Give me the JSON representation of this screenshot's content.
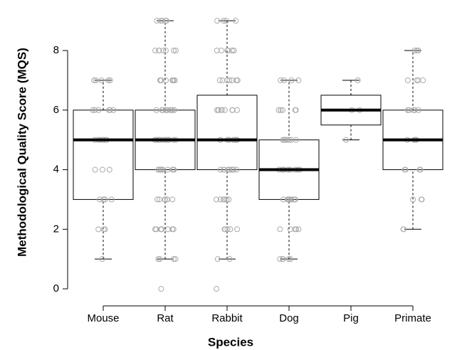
{
  "chart_data": {
    "type": "box",
    "x_label": "Species",
    "y_label": "Methodological Quality Score (MQS)",
    "categories": [
      "Mouse",
      "Rat",
      "Rabbit",
      "Dog",
      "Pig",
      "Primate"
    ],
    "boxes": [
      {
        "low": 1,
        "q1": 3,
        "median": 5,
        "q3": 6,
        "high": 7
      },
      {
        "low": 1,
        "q1": 4,
        "median": 5,
        "q3": 6,
        "high": 9
      },
      {
        "low": 1,
        "q1": 4,
        "median": 5,
        "q3": 6.5,
        "high": 9
      },
      {
        "low": 1,
        "q1": 3,
        "median": 4,
        "q3": 5,
        "high": 7
      },
      {
        "low": 5,
        "q1": 5.5,
        "median": 6,
        "q3": 6.5,
        "high": 7
      },
      {
        "low": 2,
        "q1": 4,
        "median": 5,
        "q3": 6,
        "high": 8
      }
    ],
    "points": [
      [
        7,
        7,
        7,
        7,
        7,
        6,
        6,
        6,
        6,
        6,
        6,
        5,
        5,
        5,
        5,
        5,
        5,
        5,
        4,
        4,
        4,
        3,
        3,
        3,
        3,
        2,
        2,
        2,
        1
      ],
      [
        9,
        9,
        9,
        9,
        9,
        8,
        8,
        8,
        8,
        8,
        8,
        8,
        7,
        7,
        7,
        7,
        7,
        7,
        7,
        7,
        6,
        6,
        6,
        6,
        6,
        6,
        6,
        6,
        6,
        6,
        5,
        5,
        5,
        5,
        5,
        5,
        5,
        5,
        5,
        5,
        5,
        5,
        4,
        4,
        4,
        4,
        4,
        4,
        4,
        4,
        4,
        4,
        4,
        3,
        3,
        3,
        3,
        3,
        3,
        3,
        3,
        2,
        2,
        2,
        2,
        2,
        2,
        2,
        2,
        1,
        1,
        1,
        1,
        0
      ],
      [
        9,
        9,
        9,
        9,
        8,
        8,
        8,
        8,
        8,
        8,
        8,
        7,
        7,
        7,
        7,
        7,
        7,
        7,
        6,
        6,
        6,
        6,
        6,
        6,
        6,
        6,
        6,
        5,
        5,
        5,
        5,
        5,
        5,
        5,
        5,
        5,
        5,
        4,
        4,
        4,
        4,
        4,
        4,
        4,
        4,
        4,
        3,
        3,
        3,
        3,
        3,
        3,
        2,
        2,
        2,
        2,
        2,
        1,
        1,
        0
      ],
      [
        7,
        7,
        7,
        7,
        6,
        6,
        6,
        6,
        6,
        5,
        5,
        5,
        5,
        5,
        5,
        5,
        4,
        4,
        4,
        4,
        4,
        4,
        4,
        4,
        4,
        4,
        3,
        3,
        3,
        3,
        3,
        3,
        3,
        3,
        2,
        2,
        2,
        2,
        2,
        1,
        1,
        1,
        1,
        1
      ],
      [
        7,
        6,
        6,
        5
      ],
      [
        8,
        8,
        8,
        7,
        7,
        7,
        7,
        6,
        6,
        6,
        6,
        6,
        5,
        5,
        5,
        5,
        4,
        4,
        4,
        4,
        3,
        3,
        3,
        2,
        2
      ]
    ],
    "point_color": "#aaaaaa",
    "ylim": [
      -0.3,
      9.3
    ],
    "yticks": [
      0,
      2,
      4,
      6,
      8
    ]
  }
}
